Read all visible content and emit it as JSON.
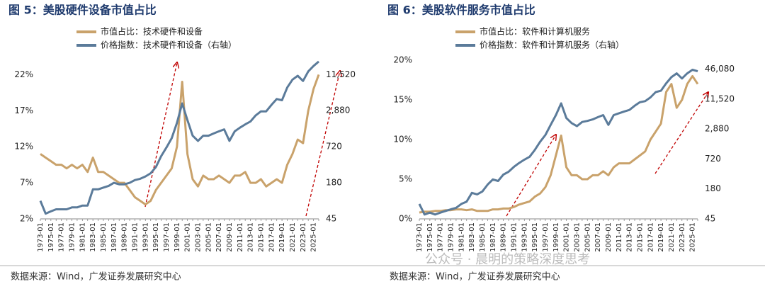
{
  "chart_data": [
    {
      "type": "line",
      "title": "图 5：美股硬件设备市值占比",
      "categories": [
        "1973-01",
        null,
        "1975-01",
        null,
        "1977-01",
        null,
        "1979-01",
        null,
        "1981-01",
        null,
        "1983-01",
        null,
        "1985-01",
        null,
        "1987-01",
        null,
        "1989-01",
        null,
        "1991-01",
        null,
        "1993-01",
        null,
        "1995-01",
        null,
        "1997-01",
        null,
        "1999-01",
        null,
        "2001-01",
        null,
        "2003-01",
        null,
        "2005-01",
        null,
        "2007-01",
        null,
        "2009-01",
        null,
        "2011-01",
        null,
        "2013-01",
        null,
        "2015-01",
        null,
        "2017-01",
        null,
        "2019-01",
        null,
        "2021-01",
        null,
        "2023-01",
        null,
        "2025-01",
        null
      ],
      "series": [
        {
          "name": "市值占比：技术硬件和设备",
          "color": "#c9a26b",
          "values": [
            11,
            10.5,
            10,
            9.5,
            9.5,
            9,
            9.5,
            9,
            9.5,
            8.5,
            10.5,
            8.5,
            8.5,
            8,
            7.5,
            7,
            7,
            6,
            5,
            4.5,
            4,
            4.5,
            6,
            7,
            8,
            9,
            12,
            21,
            11,
            7.5,
            6.5,
            8,
            7.5,
            7.5,
            8,
            7.5,
            7,
            8,
            8,
            8.5,
            7,
            7,
            7.5,
            6.5,
            7,
            7.5,
            7,
            9.5,
            11,
            13,
            12.5,
            17,
            20,
            22
          ]
        },
        {
          "name": "价格指数：技术硬件和设备（右轴）",
          "color": "#5b7b9a",
          "axis": "y2",
          "values": [
            90,
            55,
            60,
            65,
            65,
            65,
            70,
            70,
            75,
            75,
            140,
            140,
            150,
            160,
            180,
            170,
            170,
            180,
            200,
            210,
            230,
            260,
            330,
            500,
            700,
            1000,
            1800,
            3800,
            2000,
            1100,
            900,
            1100,
            1100,
            1200,
            1300,
            1400,
            900,
            1300,
            1500,
            1700,
            1900,
            2400,
            2800,
            2800,
            3600,
            4500,
            4300,
            7000,
            9500,
            11000,
            9000,
            13000,
            16000,
            19000
          ]
        }
      ],
      "ylim": [
        2,
        24
      ],
      "yticks": [
        {
          "value": 2,
          "label": "2%"
        },
        {
          "value": 7,
          "label": "7%"
        },
        {
          "value": 12,
          "label": "12%"
        },
        {
          "value": 17,
          "label": "17%"
        },
        {
          "value": 22,
          "label": "22%"
        }
      ],
      "y2lim": [
        45,
        20000
      ],
      "y2log": true,
      "y2ticks": [
        45,
        180,
        720,
        {
          "value": 2880,
          "label": "2,880"
        },
        {
          "value": 11520,
          "label": "11,520"
        }
      ],
      "source": "数据来源：Wind，广发证券发展研究中心"
    },
    {
      "type": "line",
      "title": "图 6：美股软件服务市值占比",
      "categories": [
        "1973-01",
        null,
        "1975-01",
        null,
        "1977-01",
        null,
        "1979-01",
        null,
        "1981-01",
        null,
        "1983-01",
        null,
        "1985-01",
        null,
        "1987-01",
        null,
        "1989-01",
        null,
        "1991-01",
        null,
        "1993-01",
        null,
        "1995-01",
        null,
        "1997-01",
        null,
        "1999-01",
        null,
        "2001-01",
        null,
        "2003-01",
        null,
        "2005-01",
        null,
        "2007-01",
        null,
        "2009-01",
        null,
        "2011-01",
        null,
        "2013-01",
        null,
        "2015-01",
        null,
        "2017-01",
        null,
        "2019-01",
        null,
        "2021-01",
        null,
        "2023-01",
        null,
        "2025-01",
        null
      ],
      "series": [
        {
          "name": "市值占比：软件和计算机服务",
          "color": "#c9a26b",
          "values": [
            0.8,
            0.9,
            0.9,
            1,
            1,
            1.1,
            1.1,
            1.2,
            1.2,
            1.1,
            1.2,
            1,
            1,
            1,
            1.2,
            1.2,
            1.3,
            1.3,
            1.5,
            1.8,
            2,
            2.2,
            2.8,
            3.2,
            4,
            5.5,
            8,
            10.5,
            6.5,
            5.5,
            5.5,
            5,
            5,
            5.5,
            5.5,
            6,
            5.5,
            6.5,
            7,
            7,
            7,
            7.5,
            8,
            8.5,
            10,
            11,
            12,
            16,
            17,
            14,
            15,
            17,
            18,
            17
          ]
        },
        {
          "name": "价格指数：软件和计算机服务（右轴）",
          "color": "#5b7b9a",
          "axis": "y2",
          "values": [
            90,
            55,
            60,
            55,
            60,
            65,
            70,
            75,
            90,
            100,
            150,
            140,
            160,
            220,
            280,
            260,
            350,
            400,
            500,
            600,
            700,
            800,
            1100,
            1600,
            2200,
            3500,
            5500,
            9500,
            4800,
            3800,
            3300,
            4000,
            4200,
            4500,
            5000,
            5500,
            3500,
            5500,
            6000,
            6500,
            7000,
            8500,
            10000,
            10500,
            12500,
            16000,
            17000,
            24000,
            32000,
            38000,
            30000,
            38000,
            45000,
            42000
          ]
        }
      ],
      "ylim": [
        0,
        20
      ],
      "yticks": [
        {
          "value": 0,
          "label": "0%"
        },
        {
          "value": 5,
          "label": "5%"
        },
        {
          "value": 10,
          "label": "10%"
        },
        {
          "value": 15,
          "label": "15%"
        },
        {
          "value": 20,
          "label": "20%"
        }
      ],
      "y2lim": [
        45,
        70000
      ],
      "y2log": true,
      "y2ticks": [
        45,
        180,
        720,
        {
          "value": 2880,
          "label": "2,880"
        },
        {
          "value": 11520,
          "label": "11,520"
        },
        {
          "value": 46080,
          "label": "46,080"
        }
      ],
      "source": "数据来源：Wind，广发证券发展研究中心"
    }
  ],
  "watermark": "公众号 · 晨明的策略深度思考"
}
